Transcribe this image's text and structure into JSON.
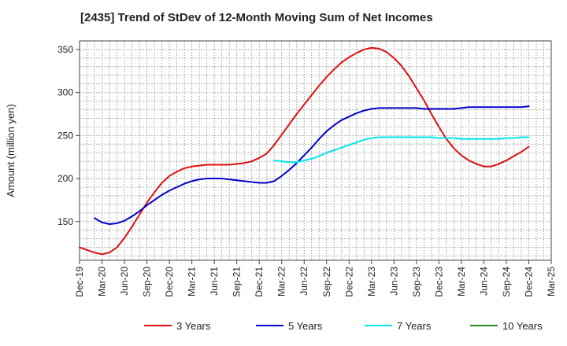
{
  "chart_data": {
    "type": "line",
    "title": "[2435]  Trend of StDev of 12-Month Moving Sum of Net Incomes",
    "ylabel": "Amount (million yen)",
    "xlabel": "",
    "ylim": [
      105,
      360
    ],
    "yticks": [
      150,
      200,
      250,
      300,
      350
    ],
    "x_range": [
      "2019-12",
      "2025-03"
    ],
    "x_tick_labels": [
      "Dec-19",
      "Mar-20",
      "Jun-20",
      "Sep-20",
      "Dec-20",
      "Mar-21",
      "Jun-21",
      "Sep-21",
      "Dec-21",
      "Mar-22",
      "Jun-22",
      "Sep-22",
      "Dec-22",
      "Mar-23",
      "Jun-23",
      "Sep-23",
      "Dec-23",
      "Mar-24",
      "Jun-24",
      "Sep-24",
      "Dec-24",
      "Mar-25"
    ],
    "grid": true,
    "legend_position": "bottom",
    "series": [
      {
        "name": "3 Years",
        "color": "#dd1111",
        "points": [
          [
            "2019-12",
            120
          ],
          [
            "2020-01",
            117
          ],
          [
            "2020-02",
            114
          ],
          [
            "2020-03",
            112
          ],
          [
            "2020-04",
            114
          ],
          [
            "2020-05",
            120
          ],
          [
            "2020-06",
            131
          ],
          [
            "2020-07",
            144
          ],
          [
            "2020-08",
            158
          ],
          [
            "2020-09",
            172
          ],
          [
            "2020-10",
            184
          ],
          [
            "2020-11",
            195
          ],
          [
            "2020-12",
            203
          ],
          [
            "2021-01",
            208
          ],
          [
            "2021-02",
            212
          ],
          [
            "2021-03",
            214
          ],
          [
            "2021-04",
            215
          ],
          [
            "2021-05",
            216
          ],
          [
            "2021-06",
            216
          ],
          [
            "2021-07",
            216
          ],
          [
            "2021-08",
            216
          ],
          [
            "2021-09",
            217
          ],
          [
            "2021-10",
            218
          ],
          [
            "2021-11",
            220
          ],
          [
            "2021-12",
            224
          ],
          [
            "2022-01",
            229
          ],
          [
            "2022-02",
            239
          ],
          [
            "2022-03",
            251
          ],
          [
            "2022-04",
            263
          ],
          [
            "2022-05",
            275
          ],
          [
            "2022-06",
            286
          ],
          [
            "2022-07",
            297
          ],
          [
            "2022-08",
            308
          ],
          [
            "2022-09",
            318
          ],
          [
            "2022-10",
            327
          ],
          [
            "2022-11",
            335
          ],
          [
            "2022-12",
            341
          ],
          [
            "2023-01",
            346
          ],
          [
            "2023-02",
            350
          ],
          [
            "2023-03",
            352
          ],
          [
            "2023-04",
            351
          ],
          [
            "2023-05",
            347
          ],
          [
            "2023-06",
            340
          ],
          [
            "2023-07",
            331
          ],
          [
            "2023-08",
            319
          ],
          [
            "2023-09",
            305
          ],
          [
            "2023-10",
            291
          ],
          [
            "2023-11",
            275
          ],
          [
            "2023-12",
            260
          ],
          [
            "2024-01",
            246
          ],
          [
            "2024-02",
            235
          ],
          [
            "2024-03",
            227
          ],
          [
            "2024-04",
            221
          ],
          [
            "2024-05",
            217
          ],
          [
            "2024-06",
            214
          ],
          [
            "2024-07",
            214
          ],
          [
            "2024-08",
            217
          ],
          [
            "2024-09",
            221
          ],
          [
            "2024-10",
            226
          ],
          [
            "2024-11",
            231
          ],
          [
            "2024-12",
            237
          ]
        ]
      },
      {
        "name": "5 Years",
        "color": "#0000cc",
        "points": [
          [
            "2020-02",
            154
          ],
          [
            "2020-03",
            149
          ],
          [
            "2020-04",
            147
          ],
          [
            "2020-05",
            148
          ],
          [
            "2020-06",
            151
          ],
          [
            "2020-07",
            156
          ],
          [
            "2020-08",
            162
          ],
          [
            "2020-09",
            169
          ],
          [
            "2020-10",
            175
          ],
          [
            "2020-11",
            181
          ],
          [
            "2020-12",
            186
          ],
          [
            "2021-01",
            190
          ],
          [
            "2021-02",
            194
          ],
          [
            "2021-03",
            197
          ],
          [
            "2021-04",
            199
          ],
          [
            "2021-05",
            200
          ],
          [
            "2021-06",
            200
          ],
          [
            "2021-07",
            200
          ],
          [
            "2021-08",
            199
          ],
          [
            "2021-09",
            198
          ],
          [
            "2021-10",
            197
          ],
          [
            "2021-11",
            196
          ],
          [
            "2021-12",
            195
          ],
          [
            "2022-01",
            195
          ],
          [
            "2022-02",
            197
          ],
          [
            "2022-03",
            203
          ],
          [
            "2022-04",
            210
          ],
          [
            "2022-05",
            218
          ],
          [
            "2022-06",
            227
          ],
          [
            "2022-07",
            236
          ],
          [
            "2022-08",
            246
          ],
          [
            "2022-09",
            255
          ],
          [
            "2022-10",
            262
          ],
          [
            "2022-11",
            268
          ],
          [
            "2022-12",
            272
          ],
          [
            "2023-01",
            276
          ],
          [
            "2023-02",
            279
          ],
          [
            "2023-03",
            281
          ],
          [
            "2023-04",
            282
          ],
          [
            "2023-05",
            282
          ],
          [
            "2023-06",
            282
          ],
          [
            "2023-07",
            282
          ],
          [
            "2023-08",
            282
          ],
          [
            "2023-09",
            282
          ],
          [
            "2023-10",
            281
          ],
          [
            "2023-11",
            281
          ],
          [
            "2023-12",
            281
          ],
          [
            "2024-01",
            281
          ],
          [
            "2024-02",
            281
          ],
          [
            "2024-03",
            282
          ],
          [
            "2024-04",
            283
          ],
          [
            "2024-05",
            283
          ],
          [
            "2024-06",
            283
          ],
          [
            "2024-07",
            283
          ],
          [
            "2024-08",
            283
          ],
          [
            "2024-09",
            283
          ],
          [
            "2024-10",
            283
          ],
          [
            "2024-11",
            283
          ],
          [
            "2024-12",
            284
          ]
        ]
      },
      {
        "name": "7 Years",
        "color": "#00e5ee",
        "points": [
          [
            "2022-02",
            221
          ],
          [
            "2022-03",
            220
          ],
          [
            "2022-04",
            219
          ],
          [
            "2022-05",
            219
          ],
          [
            "2022-06",
            221
          ],
          [
            "2022-07",
            223
          ],
          [
            "2022-08",
            226
          ],
          [
            "2022-09",
            230
          ],
          [
            "2022-10",
            233
          ],
          [
            "2022-11",
            236
          ],
          [
            "2022-12",
            239
          ],
          [
            "2023-01",
            242
          ],
          [
            "2023-02",
            245
          ],
          [
            "2023-03",
            247
          ],
          [
            "2023-04",
            248
          ],
          [
            "2023-05",
            248
          ],
          [
            "2023-06",
            248
          ],
          [
            "2023-07",
            248
          ],
          [
            "2023-08",
            248
          ],
          [
            "2023-09",
            248
          ],
          [
            "2023-10",
            248
          ],
          [
            "2023-11",
            248
          ],
          [
            "2023-12",
            247
          ],
          [
            "2024-01",
            247
          ],
          [
            "2024-02",
            247
          ],
          [
            "2024-03",
            246
          ],
          [
            "2024-04",
            246
          ],
          [
            "2024-05",
            246
          ],
          [
            "2024-06",
            246
          ],
          [
            "2024-07",
            246
          ],
          [
            "2024-08",
            246
          ],
          [
            "2024-09",
            247
          ],
          [
            "2024-10",
            247
          ],
          [
            "2024-11",
            248
          ],
          [
            "2024-12",
            248
          ]
        ]
      },
      {
        "name": "10 Years",
        "color": "#228b22",
        "points": []
      }
    ]
  }
}
